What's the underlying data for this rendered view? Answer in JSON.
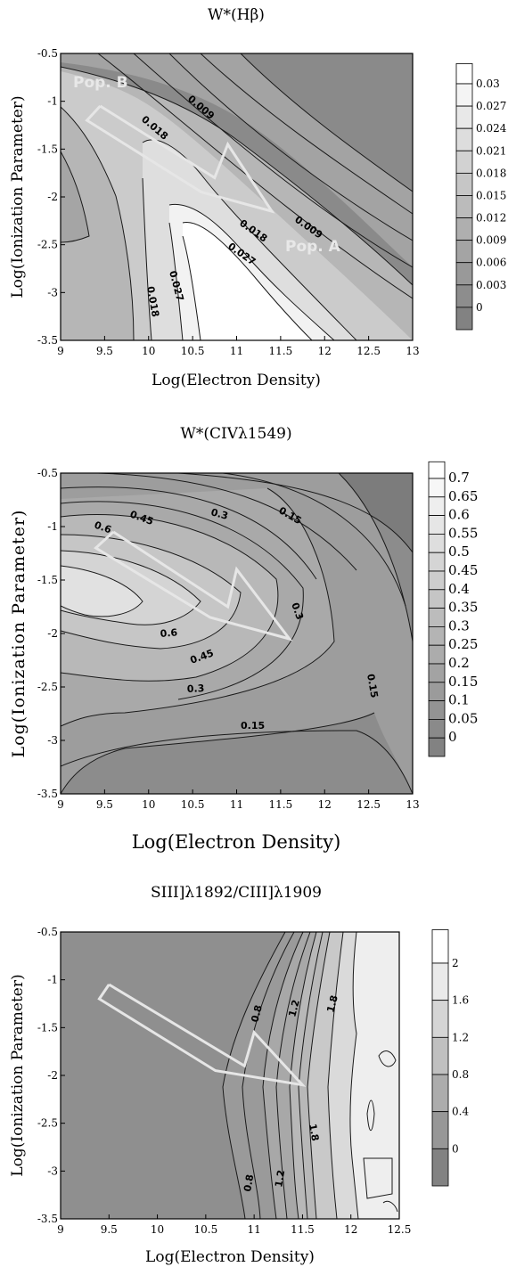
{
  "chart_data": [
    {
      "type": "contour",
      "title": "W*(Hβ)",
      "xlabel": "Log(Electron Density)",
      "ylabel": "Log(Ionization Parameter)",
      "xlim": [
        9,
        13
      ],
      "ylim": [
        -3.5,
        -0.5
      ],
      "xticks": [
        "9",
        "9.5",
        "10",
        "10.5",
        "11",
        "11.5",
        "12",
        "12.5",
        "13"
      ],
      "yticks": [
        "-0.5",
        "-1",
        "-1.5",
        "-2",
        "-2.5",
        "-3",
        "-3.5"
      ],
      "colorbar": [
        "0.03",
        "0.027",
        "0.024",
        "0.021",
        "0.018",
        "0.015",
        "0.012",
        "0.009",
        "0.006",
        "0.003",
        "0"
      ],
      "contour_labels": [
        "0.018",
        "0.009",
        "0.009",
        "0.018",
        "0.027",
        "0.027",
        "0.018"
      ],
      "annotations": [
        "Pop. B",
        "Pop. A"
      ],
      "arrow": [
        [
          9.45,
          -1.05
        ],
        [
          10.75,
          -1.8
        ],
        [
          10.9,
          -1.45
        ],
        [
          11.4,
          -2.15
        ],
        [
          10.6,
          -1.95
        ],
        [
          9.3,
          -1.2
        ]
      ]
    },
    {
      "type": "contour",
      "title": "W*(CIVλ1549)",
      "xlabel": "Log(Electron Density)",
      "ylabel": "Log(Ionization Parameter)",
      "xlim": [
        9,
        13
      ],
      "ylim": [
        -3.5,
        -0.5
      ],
      "xticks": [
        "9",
        "9.5",
        "10",
        "10.5",
        "11",
        "11.5",
        "12",
        "12.5",
        "13"
      ],
      "yticks": [
        "-0.5",
        "-1",
        "-1.5",
        "-2",
        "-2.5",
        "-3",
        "-3.5"
      ],
      "colorbar": [
        "0.7",
        "0.65",
        "0.6",
        "0.55",
        "0.5",
        "0.45",
        "0.4",
        "0.35",
        "0.3",
        "0.25",
        "0.2",
        "0.15",
        "0.1",
        "0.05",
        "0"
      ],
      "contour_labels": [
        "0.6",
        "0.45",
        "0.3",
        "0.15",
        "0.6",
        "0.45",
        "0.3",
        "0.3",
        "0.15",
        "0.15"
      ],
      "annotations": [],
      "arrow": [
        [
          9.6,
          -1.05
        ],
        [
          10.9,
          -1.75
        ],
        [
          11.0,
          -1.4
        ],
        [
          11.6,
          -2.05
        ],
        [
          10.7,
          -1.85
        ],
        [
          9.4,
          -1.2
        ]
      ]
    },
    {
      "type": "contour",
      "title": "SIII]λ1892/CIII]λ1909",
      "xlabel": "Log(Electron Density)",
      "ylabel": "Log(Ionization Parameter)",
      "xlim": [
        9,
        12.5
      ],
      "ylim": [
        -3.5,
        -0.5
      ],
      "xticks": [
        "9",
        "9.5",
        "10",
        "10.5",
        "11",
        "11.5",
        "12",
        "12.5"
      ],
      "yticks": [
        "-0.5",
        "-1",
        "-1.5",
        "-2",
        "-2.5",
        "-3",
        "-3.5"
      ],
      "colorbar": [
        "2",
        "1.6",
        "1.2",
        "0.8",
        "0.4",
        "0"
      ],
      "contour_labels": [
        "0.8",
        "1.2",
        "1.8",
        "0.8",
        "1.2",
        "1.8"
      ],
      "annotations": [],
      "arrow": [
        [
          9.5,
          -1.05
        ],
        [
          10.9,
          -1.9
        ],
        [
          11.0,
          -1.55
        ],
        [
          11.5,
          -2.1
        ],
        [
          10.6,
          -1.95
        ],
        [
          9.4,
          -1.2
        ]
      ]
    }
  ]
}
